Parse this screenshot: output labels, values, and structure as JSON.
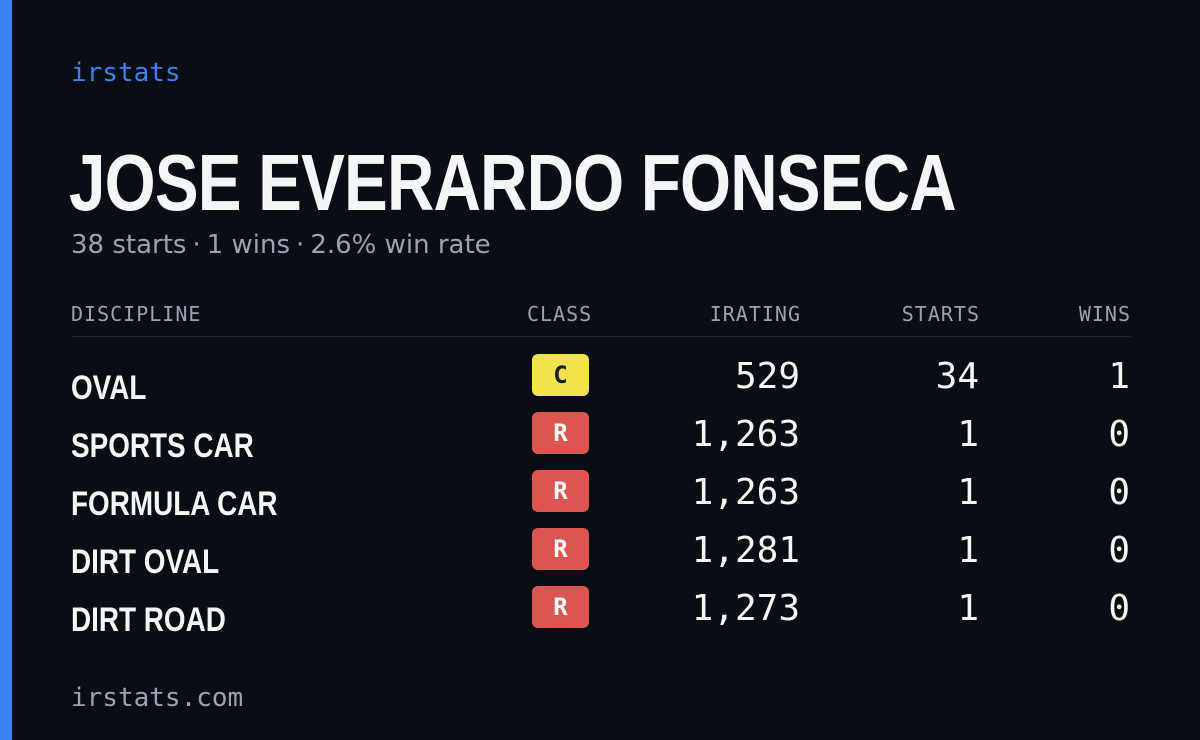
{
  "brand": "irstats",
  "driver": {
    "name": "JOSE EVERARDO FONSECA"
  },
  "summary": {
    "starts": "38 starts",
    "wins": "1 wins",
    "win_rate": "2.6% win rate",
    "separator": "·"
  },
  "table": {
    "headers": {
      "discipline": "DISCIPLINE",
      "class": "CLASS",
      "irating": "IRATING",
      "starts": "STARTS",
      "wins": "WINS"
    },
    "rows": [
      {
        "discipline": "OVAL",
        "class": "C",
        "class_color": "#f2e34c",
        "irating": "529",
        "starts": "34",
        "wins": "1"
      },
      {
        "discipline": "SPORTS CAR",
        "class": "R",
        "class_color": "#dc5550",
        "irating": "1,263",
        "starts": "1",
        "wins": "0"
      },
      {
        "discipline": "FORMULA CAR",
        "class": "R",
        "class_color": "#dc5550",
        "irating": "1,263",
        "starts": "1",
        "wins": "0"
      },
      {
        "discipline": "DIRT OVAL",
        "class": "R",
        "class_color": "#dc5550",
        "irating": "1,281",
        "starts": "1",
        "wins": "0"
      },
      {
        "discipline": "DIRT ROAD",
        "class": "R",
        "class_color": "#dc5550",
        "irating": "1,273",
        "starts": "1",
        "wins": "0"
      }
    ]
  },
  "footer": {
    "url": "irstats.com"
  },
  "colors": {
    "accent": "#3b82f6",
    "background": "#0a0d14",
    "muted": "#9aa3b2",
    "class_c": "#f2e34c",
    "class_r": "#dc5550"
  }
}
